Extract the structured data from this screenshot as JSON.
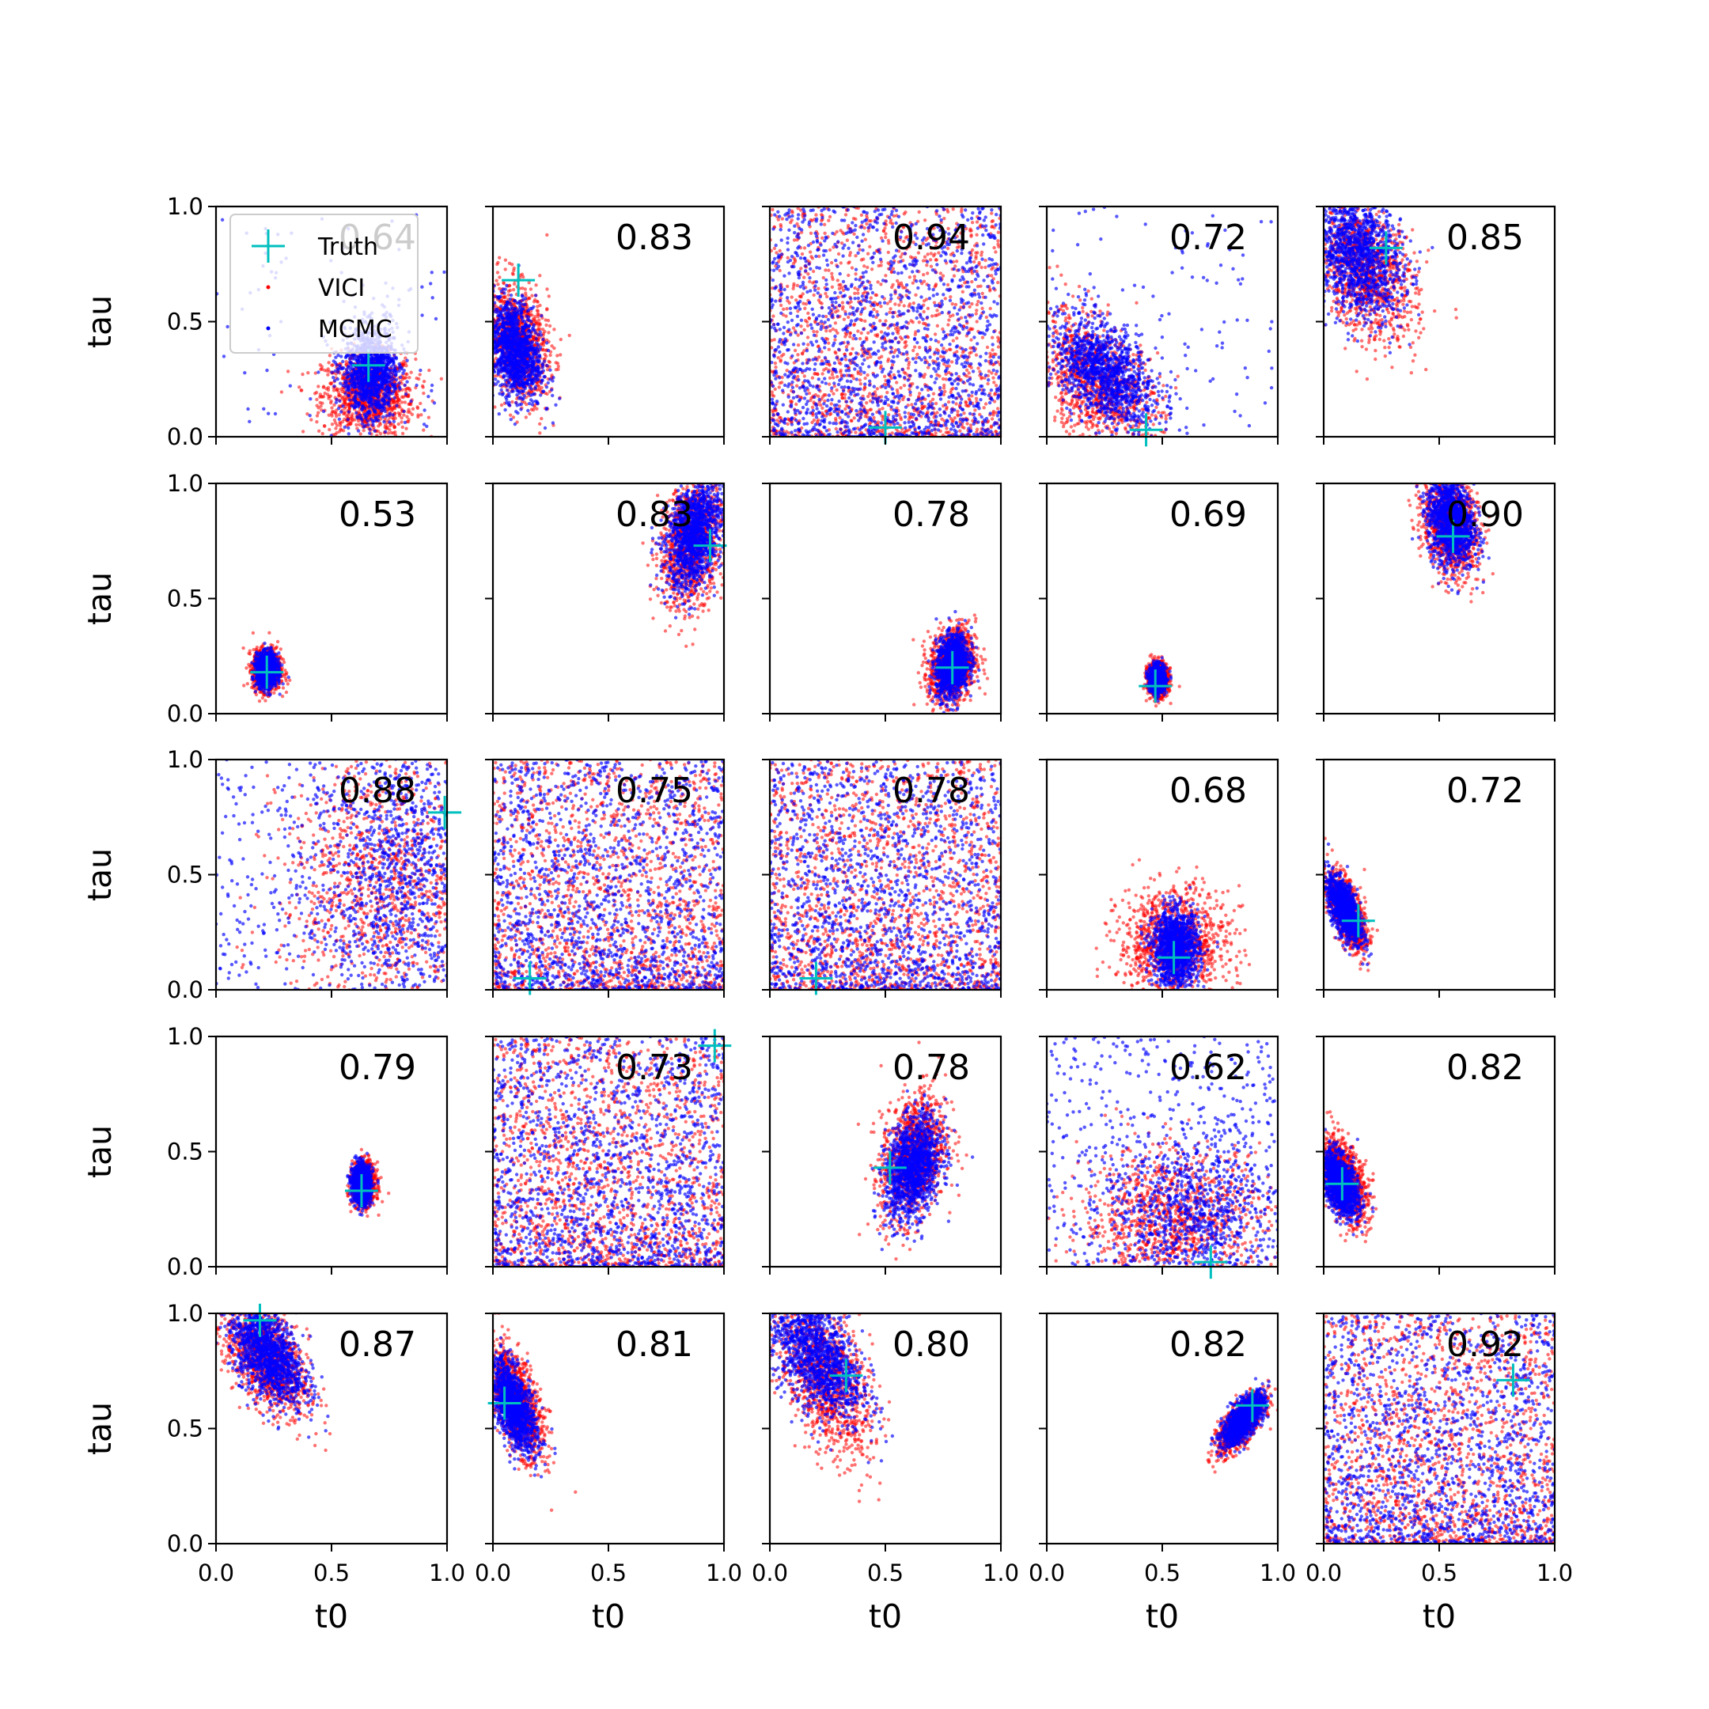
{
  "chart_data": {
    "type": "scatter",
    "layout": "5x5 grid of t0 vs tau scatter panels",
    "xlabel": "t0",
    "ylabel": "tau",
    "xlim": [
      0,
      1
    ],
    "ylim": [
      0,
      1
    ],
    "xticks": [
      "0.0",
      "0.5",
      "1.0"
    ],
    "yticks": [
      "0.0",
      "0.5",
      "1.0"
    ],
    "grid": false,
    "legend": {
      "location": "upper-left of first panel",
      "entries": [
        {
          "label": "Truth",
          "marker": "+",
          "color": "#00bfbf"
        },
        {
          "label": "VICI",
          "marker": "dot",
          "color": "#ff0000"
        },
        {
          "label": "MCMC",
          "marker": "dot",
          "color": "#0000ff"
        }
      ]
    },
    "colors": {
      "vici": "#ff0000",
      "mcmc": "#0000ff",
      "truth": "#00bfbf"
    },
    "panels": [
      {
        "score": "0.64",
        "truth": [
          0.66,
          0.31
        ]
      },
      {
        "score": "0.83",
        "truth": [
          0.11,
          0.68
        ]
      },
      {
        "score": "0.94",
        "truth": [
          0.5,
          0.04
        ]
      },
      {
        "score": "0.72",
        "truth": [
          0.43,
          0.03
        ]
      },
      {
        "score": "0.85",
        "truth": [
          0.27,
          0.82
        ]
      },
      {
        "score": "0.53",
        "truth": [
          0.22,
          0.18
        ]
      },
      {
        "score": "0.83",
        "truth": [
          0.94,
          0.73
        ]
      },
      {
        "score": "0.78",
        "truth": [
          0.79,
          0.2
        ]
      },
      {
        "score": "0.69",
        "truth": [
          0.47,
          0.12
        ]
      },
      {
        "score": "0.90",
        "truth": [
          0.56,
          0.77
        ]
      },
      {
        "score": "0.88",
        "truth": [
          0.99,
          0.77
        ]
      },
      {
        "score": "0.75",
        "truth": [
          0.16,
          0.05
        ]
      },
      {
        "score": "0.78",
        "truth": [
          0.2,
          0.05
        ]
      },
      {
        "score": "0.68",
        "truth": [
          0.55,
          0.14
        ]
      },
      {
        "score": "0.72",
        "truth": [
          0.15,
          0.3
        ]
      },
      {
        "score": "0.79",
        "truth": [
          0.63,
          0.33
        ]
      },
      {
        "score": "0.73",
        "truth": [
          0.96,
          0.96
        ]
      },
      {
        "score": "0.78",
        "truth": [
          0.52,
          0.43
        ]
      },
      {
        "score": "0.62",
        "truth": [
          0.71,
          0.02
        ]
      },
      {
        "score": "0.82",
        "truth": [
          0.08,
          0.36
        ]
      },
      {
        "score": "0.87",
        "truth": [
          0.19,
          0.97
        ]
      },
      {
        "score": "0.81",
        "truth": [
          0.05,
          0.61
        ]
      },
      {
        "score": "0.80",
        "truth": [
          0.33,
          0.73
        ]
      },
      {
        "score": "0.82",
        "truth": [
          0.89,
          0.6
        ]
      },
      {
        "score": "0.92",
        "truth": [
          0.82,
          0.71
        ]
      }
    ]
  }
}
